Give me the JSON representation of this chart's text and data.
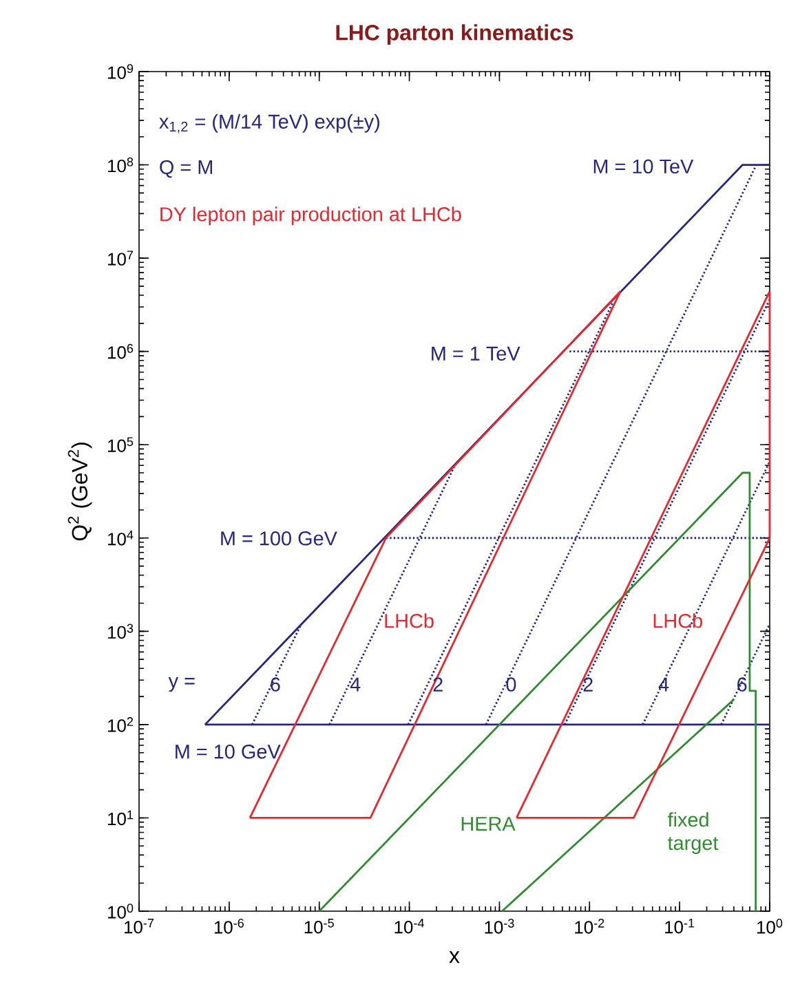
{
  "chart_data": {
    "type": "line",
    "title": "LHC parton kinematics",
    "xlabel": "x",
    "ylabel": "Q$^{2}$  (GeV$^{2}$)",
    "log": "xy",
    "xlim": [
      1e-07,
      1
    ],
    "ylim": [
      1,
      1000000000.0
    ],
    "xticks": [
      {
        "value": 1e-07,
        "label": "10$^{-7}$"
      },
      {
        "value": 1e-06,
        "label": "10$^{-6}$"
      },
      {
        "value": 1e-05,
        "label": "10$^{-5}$"
      },
      {
        "value": 0.0001,
        "label": "10$^{-4}$"
      },
      {
        "value": 0.001,
        "label": "10$^{-3}$"
      },
      {
        "value": 0.01,
        "label": "10$^{-2}$"
      },
      {
        "value": 0.1,
        "label": "10$^{-1}$"
      },
      {
        "value": 1,
        "label": "10$^{0}$"
      }
    ],
    "yticks": [
      {
        "value": 1,
        "label": "10$^{0}$"
      },
      {
        "value": 10,
        "label": "10$^{1}$"
      },
      {
        "value": 100,
        "label": "10$^{2}$"
      },
      {
        "value": 1000.0,
        "label": "10$^{3}$"
      },
      {
        "value": 10000.0,
        "label": "10$^{4}$"
      },
      {
        "value": 100000.0,
        "label": "10$^{5}$"
      },
      {
        "value": 1000000.0,
        "label": "10$^{6}$"
      },
      {
        "value": 10000000.0,
        "label": "10$^{7}$"
      },
      {
        "value": 100000000.0,
        "label": "10$^{8}$"
      },
      {
        "value": 1000000000.0,
        "label": "10$^{9}$"
      }
    ],
    "series": [
      {
        "color": "#262680",
        "line_style": "dotted",
        "x": [
          1.8e-06,
          6.2e-06
        ],
        "values": [
          100,
          1150
        ]
      },
      {
        "color": "#262680",
        "line_style": "dotted",
        "x": [
          1.3e-05,
          0.00032
        ],
        "values": [
          100,
          60000.0
        ]
      },
      {
        "color": "#262680",
        "line_style": "dotted",
        "x": [
          9.7e-05,
          0.018
        ],
        "values": [
          100,
          3300000.0
        ]
      },
      {
        "color": "#262680",
        "line_style": "dotted",
        "x": [
          0.00071,
          0.71
        ],
        "values": [
          100,
          100000000.0
        ]
      },
      {
        "color": "#262680",
        "line_style": "dotted",
        "x": [
          0.0053,
          1
        ],
        "values": [
          100,
          3600000.0
        ]
      },
      {
        "color": "#262680",
        "line_style": "dotted",
        "x": [
          0.039,
          1
        ],
        "values": [
          100,
          66000.0
        ]
      },
      {
        "color": "#262680",
        "line_style": "dotted",
        "x": [
          0.29,
          1
        ],
        "values": [
          100,
          1200
        ]
      },
      {
        "color": "#262680",
        "line_style": "dotted",
        "x": [
          5.5e-05,
          1
        ],
        "values": [
          10000.0,
          10000.0
        ]
      },
      {
        "color": "#262680",
        "line_style": "dotted",
        "x": [
          0.006,
          1
        ],
        "values": [
          1000000.0,
          1000000.0
        ]
      },
      {
        "color": "#262680",
        "line_style": "solid",
        "x": [
          5.4e-07,
          0.5,
          1
        ],
        "values": [
          100,
          100000000.0,
          100000000.0
        ]
      },
      {
        "color": "#262680",
        "line_style": "solid",
        "x": [
          5.4e-07,
          1
        ],
        "values": [
          100,
          100
        ]
      },
      {
        "color": "#2e8b2e",
        "line_style": "solid",
        "x": [
          1e-05,
          0.5,
          0.6,
          0.6,
          0.7,
          0.7
        ],
        "values": [
          1,
          50000.0,
          50000.0,
          230,
          230,
          1
        ]
      },
      {
        "color": "#2e8b2e",
        "line_style": "solid",
        "x": [
          0.00107,
          0.4
        ],
        "values": [
          1,
          186
        ]
      },
      {
        "color": "#e8262b",
        "line_style": "solid",
        "x": [
          1.7e-06,
          5.5e-05,
          0.022
        ],
        "values": [
          10,
          10000.0,
          4400000.0
        ]
      },
      {
        "color": "#e8262b",
        "line_style": "solid",
        "x": [
          1.7e-06,
          3.7e-05,
          0.022
        ],
        "values": [
          10,
          10,
          4400000.0
        ]
      },
      {
        "color": "#e8262b",
        "line_style": "solid",
        "x": [
          0.00155,
          1
        ],
        "values": [
          10,
          4400000.0
        ]
      },
      {
        "color": "#e8262b",
        "line_style": "solid",
        "x": [
          0.00155,
          0.031,
          1,
          1
        ],
        "values": [
          10,
          10,
          10000.0,
          4400000.0
        ]
      }
    ],
    "annotations": [
      "x$_{1,2}$ = (M/14 TeV) exp(±y)",
      "Q = M",
      "DY lepton pair production at LHCb",
      "M = 10 TeV",
      "M = 1 TeV",
      "M = 100 GeV",
      "M = 10 GeV",
      "y =",
      "6",
      "4",
      "2",
      "0",
      "2",
      "4",
      "6",
      "LHCb",
      "LHCb",
      "HERA",
      "fixed target"
    ]
  }
}
